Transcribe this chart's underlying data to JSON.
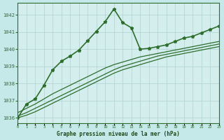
{
  "title": "Graphe pression niveau de la mer (hPa)",
  "bg_color": "#c5e8e8",
  "plot_bg_color": "#d4eeee",
  "grid_color": "#b0d0d0",
  "line_color": "#2d6e2d",
  "xlabel_color": "#1a4a1a",
  "xlim": [
    0,
    23
  ],
  "ylim": [
    1035.7,
    1042.7
  ],
  "yticks": [
    1036,
    1037,
    1038,
    1039,
    1040,
    1041,
    1042
  ],
  "xticks": [
    0,
    1,
    2,
    3,
    4,
    5,
    6,
    7,
    8,
    9,
    10,
    11,
    12,
    13,
    14,
    15,
    16,
    17,
    18,
    19,
    20,
    21,
    22,
    23
  ],
  "series_with_markers": [
    [
      1036.0,
      1036.8,
      1037.1,
      1037.9,
      1038.8,
      1039.3,
      1039.6,
      1039.95,
      1040.5,
      1041.05,
      1041.6,
      1042.35,
      1041.55,
      1041.25,
      1040.0,
      1040.05,
      1040.15,
      1040.25,
      1040.45,
      1040.65,
      1040.75,
      1040.95,
      1041.15,
      1041.35
    ]
  ],
  "series_straight": [
    [
      1036.3,
      1036.55,
      1036.8,
      1037.1,
      1037.4,
      1037.65,
      1037.9,
      1038.15,
      1038.4,
      1038.65,
      1038.9,
      1039.1,
      1039.25,
      1039.4,
      1039.55,
      1039.65,
      1039.75,
      1039.85,
      1039.95,
      1040.05,
      1040.15,
      1040.25,
      1040.35,
      1040.45
    ],
    [
      1036.1,
      1036.3,
      1036.55,
      1036.8,
      1037.05,
      1037.3,
      1037.55,
      1037.8,
      1038.05,
      1038.3,
      1038.55,
      1038.8,
      1039.0,
      1039.15,
      1039.3,
      1039.45,
      1039.6,
      1039.7,
      1039.8,
      1039.9,
      1040.0,
      1040.1,
      1040.2,
      1040.3
    ],
    [
      1036.0,
      1036.15,
      1036.35,
      1036.6,
      1036.85,
      1037.1,
      1037.35,
      1037.6,
      1037.85,
      1038.1,
      1038.35,
      1038.6,
      1038.8,
      1038.95,
      1039.1,
      1039.25,
      1039.4,
      1039.55,
      1039.65,
      1039.75,
      1039.85,
      1039.95,
      1040.05,
      1040.15
    ]
  ],
  "marker": "*",
  "markersize": 3.5,
  "linewidth_main": 1.2,
  "linewidth_straight": 0.9
}
